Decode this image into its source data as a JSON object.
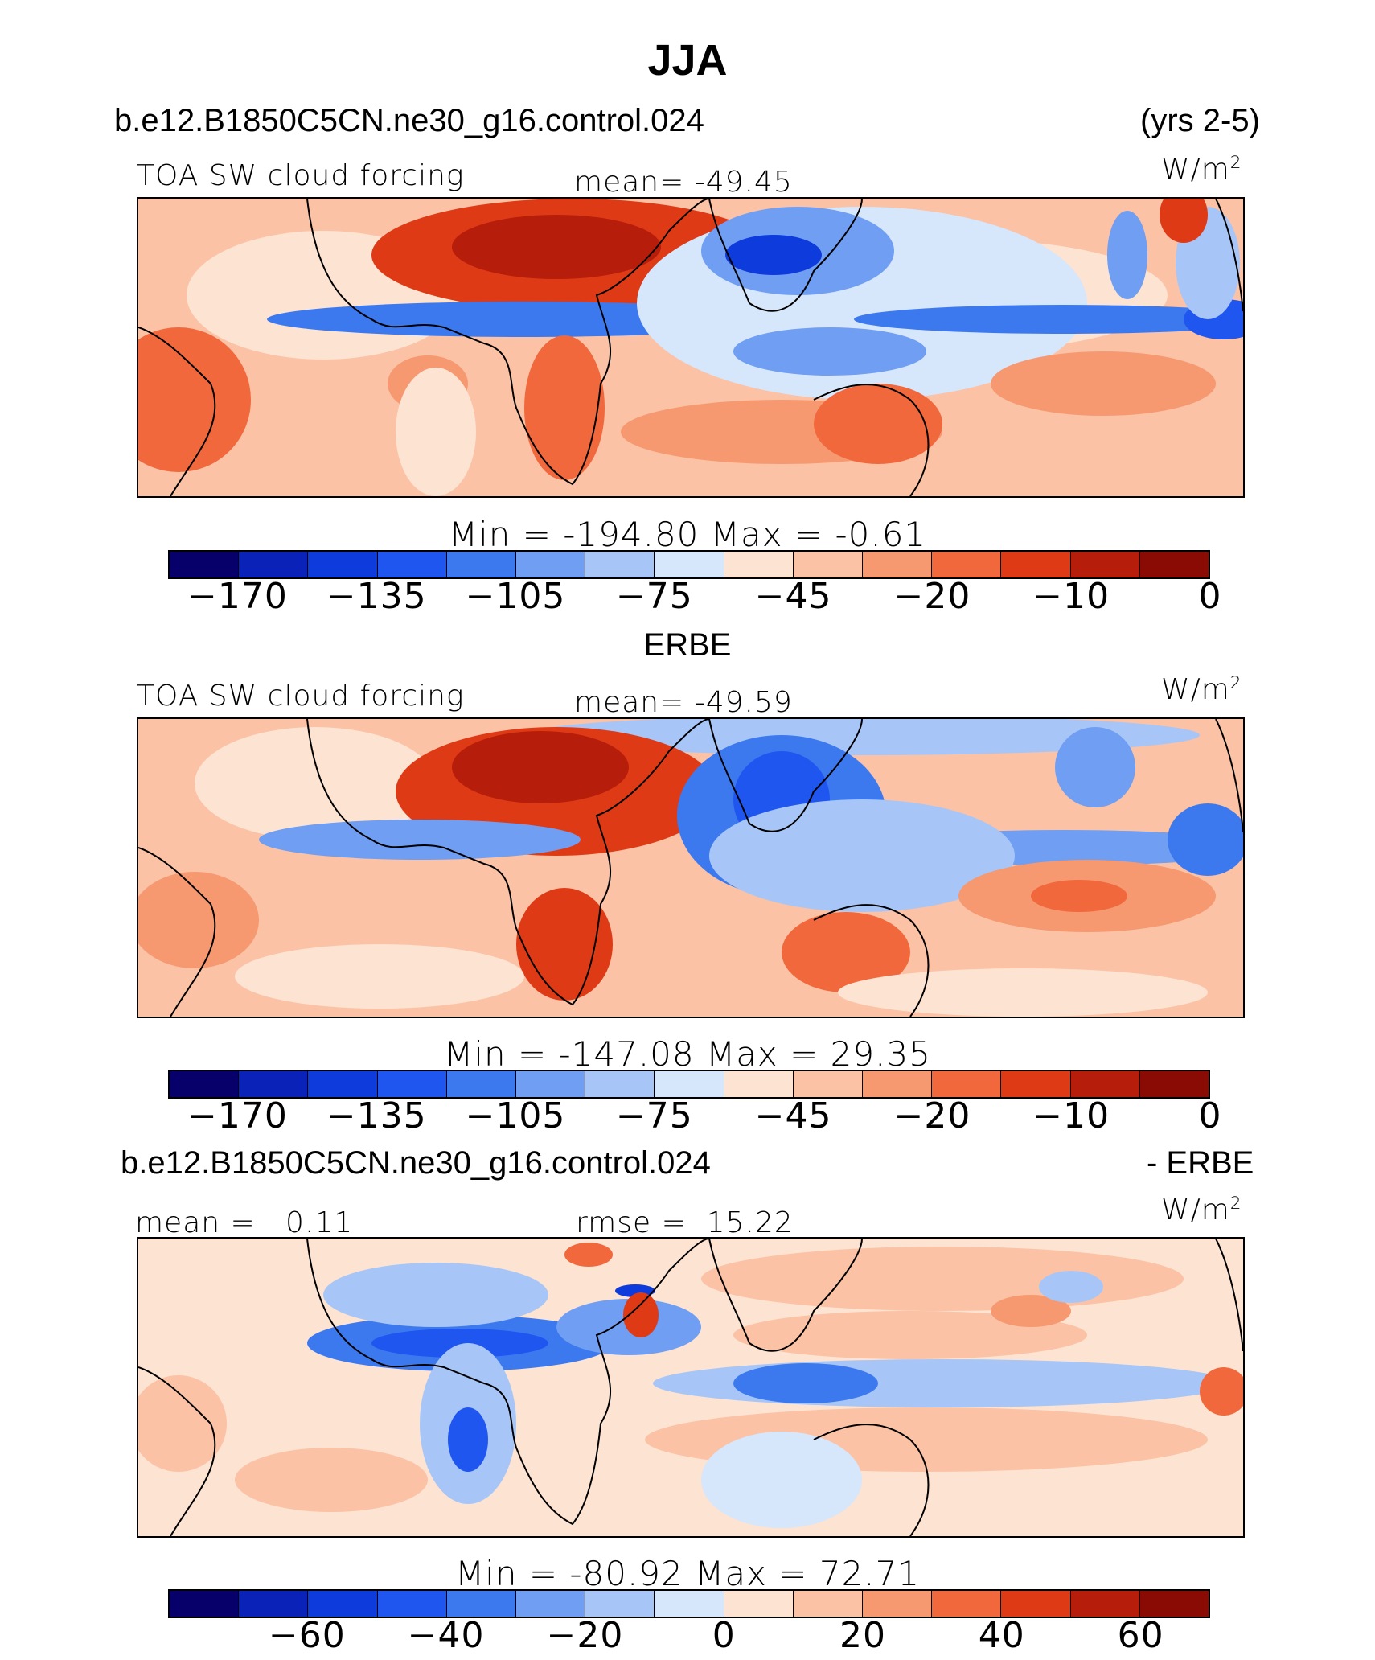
{
  "figure": {
    "title": "JJA",
    "case_name": "b.e12.B1850C5CN.ne30_g16.control.024",
    "years": "(yrs 2-5)",
    "obs_label": "ERBE",
    "diff_case_name": "b.e12.B1850C5CN.ne30_g16.control.024",
    "diff_suffix": "- ERBE"
  },
  "units_base": "W/m",
  "units_exp": "2",
  "palette": [
    "#08006a",
    "#0a22b8",
    "#0d3bdc",
    "#1f56f0",
    "#3c79ef",
    "#6f9ef2",
    "#a7c6f7",
    "#d6e6fb",
    "#fde3d2",
    "#fbc2a6",
    "#f69870",
    "#f0683c",
    "#de3a16",
    "#b71d0b",
    "#8a0a04"
  ],
  "chart_data": [
    {
      "type": "heatmap",
      "panel": "model",
      "variable_label": "TOA SW cloud forcing",
      "stat1_label": "mean=",
      "stat1_value": "-49.45",
      "minmax_text": "Min = -194.80 Max = -0.61",
      "min": -194.8,
      "max": -0.61,
      "mean": -49.45,
      "colorbar_ticks": [
        "-170",
        "-135",
        "-105",
        "-75",
        "-45",
        "-20",
        "-10",
        "0"
      ]
    },
    {
      "type": "heatmap",
      "panel": "obs",
      "variable_label": "TOA SW cloud forcing",
      "stat1_label": "mean=",
      "stat1_value": "-49.59",
      "minmax_text": "Min = -147.08 Max = 29.35",
      "min": -147.08,
      "max": 29.35,
      "mean": -49.59,
      "colorbar_ticks": [
        "-170",
        "-135",
        "-105",
        "-75",
        "-45",
        "-20",
        "-10",
        "0"
      ]
    },
    {
      "type": "heatmap",
      "panel": "difference",
      "stat0_label": "mean =",
      "stat0_value": "0.11",
      "stat1_label": "rmse =",
      "stat1_value": "15.22",
      "minmax_text": "Min = -80.92 Max = 72.71",
      "min": -80.92,
      "max": 72.71,
      "mean": 0.11,
      "rmse": 15.22,
      "colorbar_ticks": [
        "-60",
        "-40",
        "-20",
        "0",
        "20",
        "40",
        "60"
      ]
    }
  ]
}
